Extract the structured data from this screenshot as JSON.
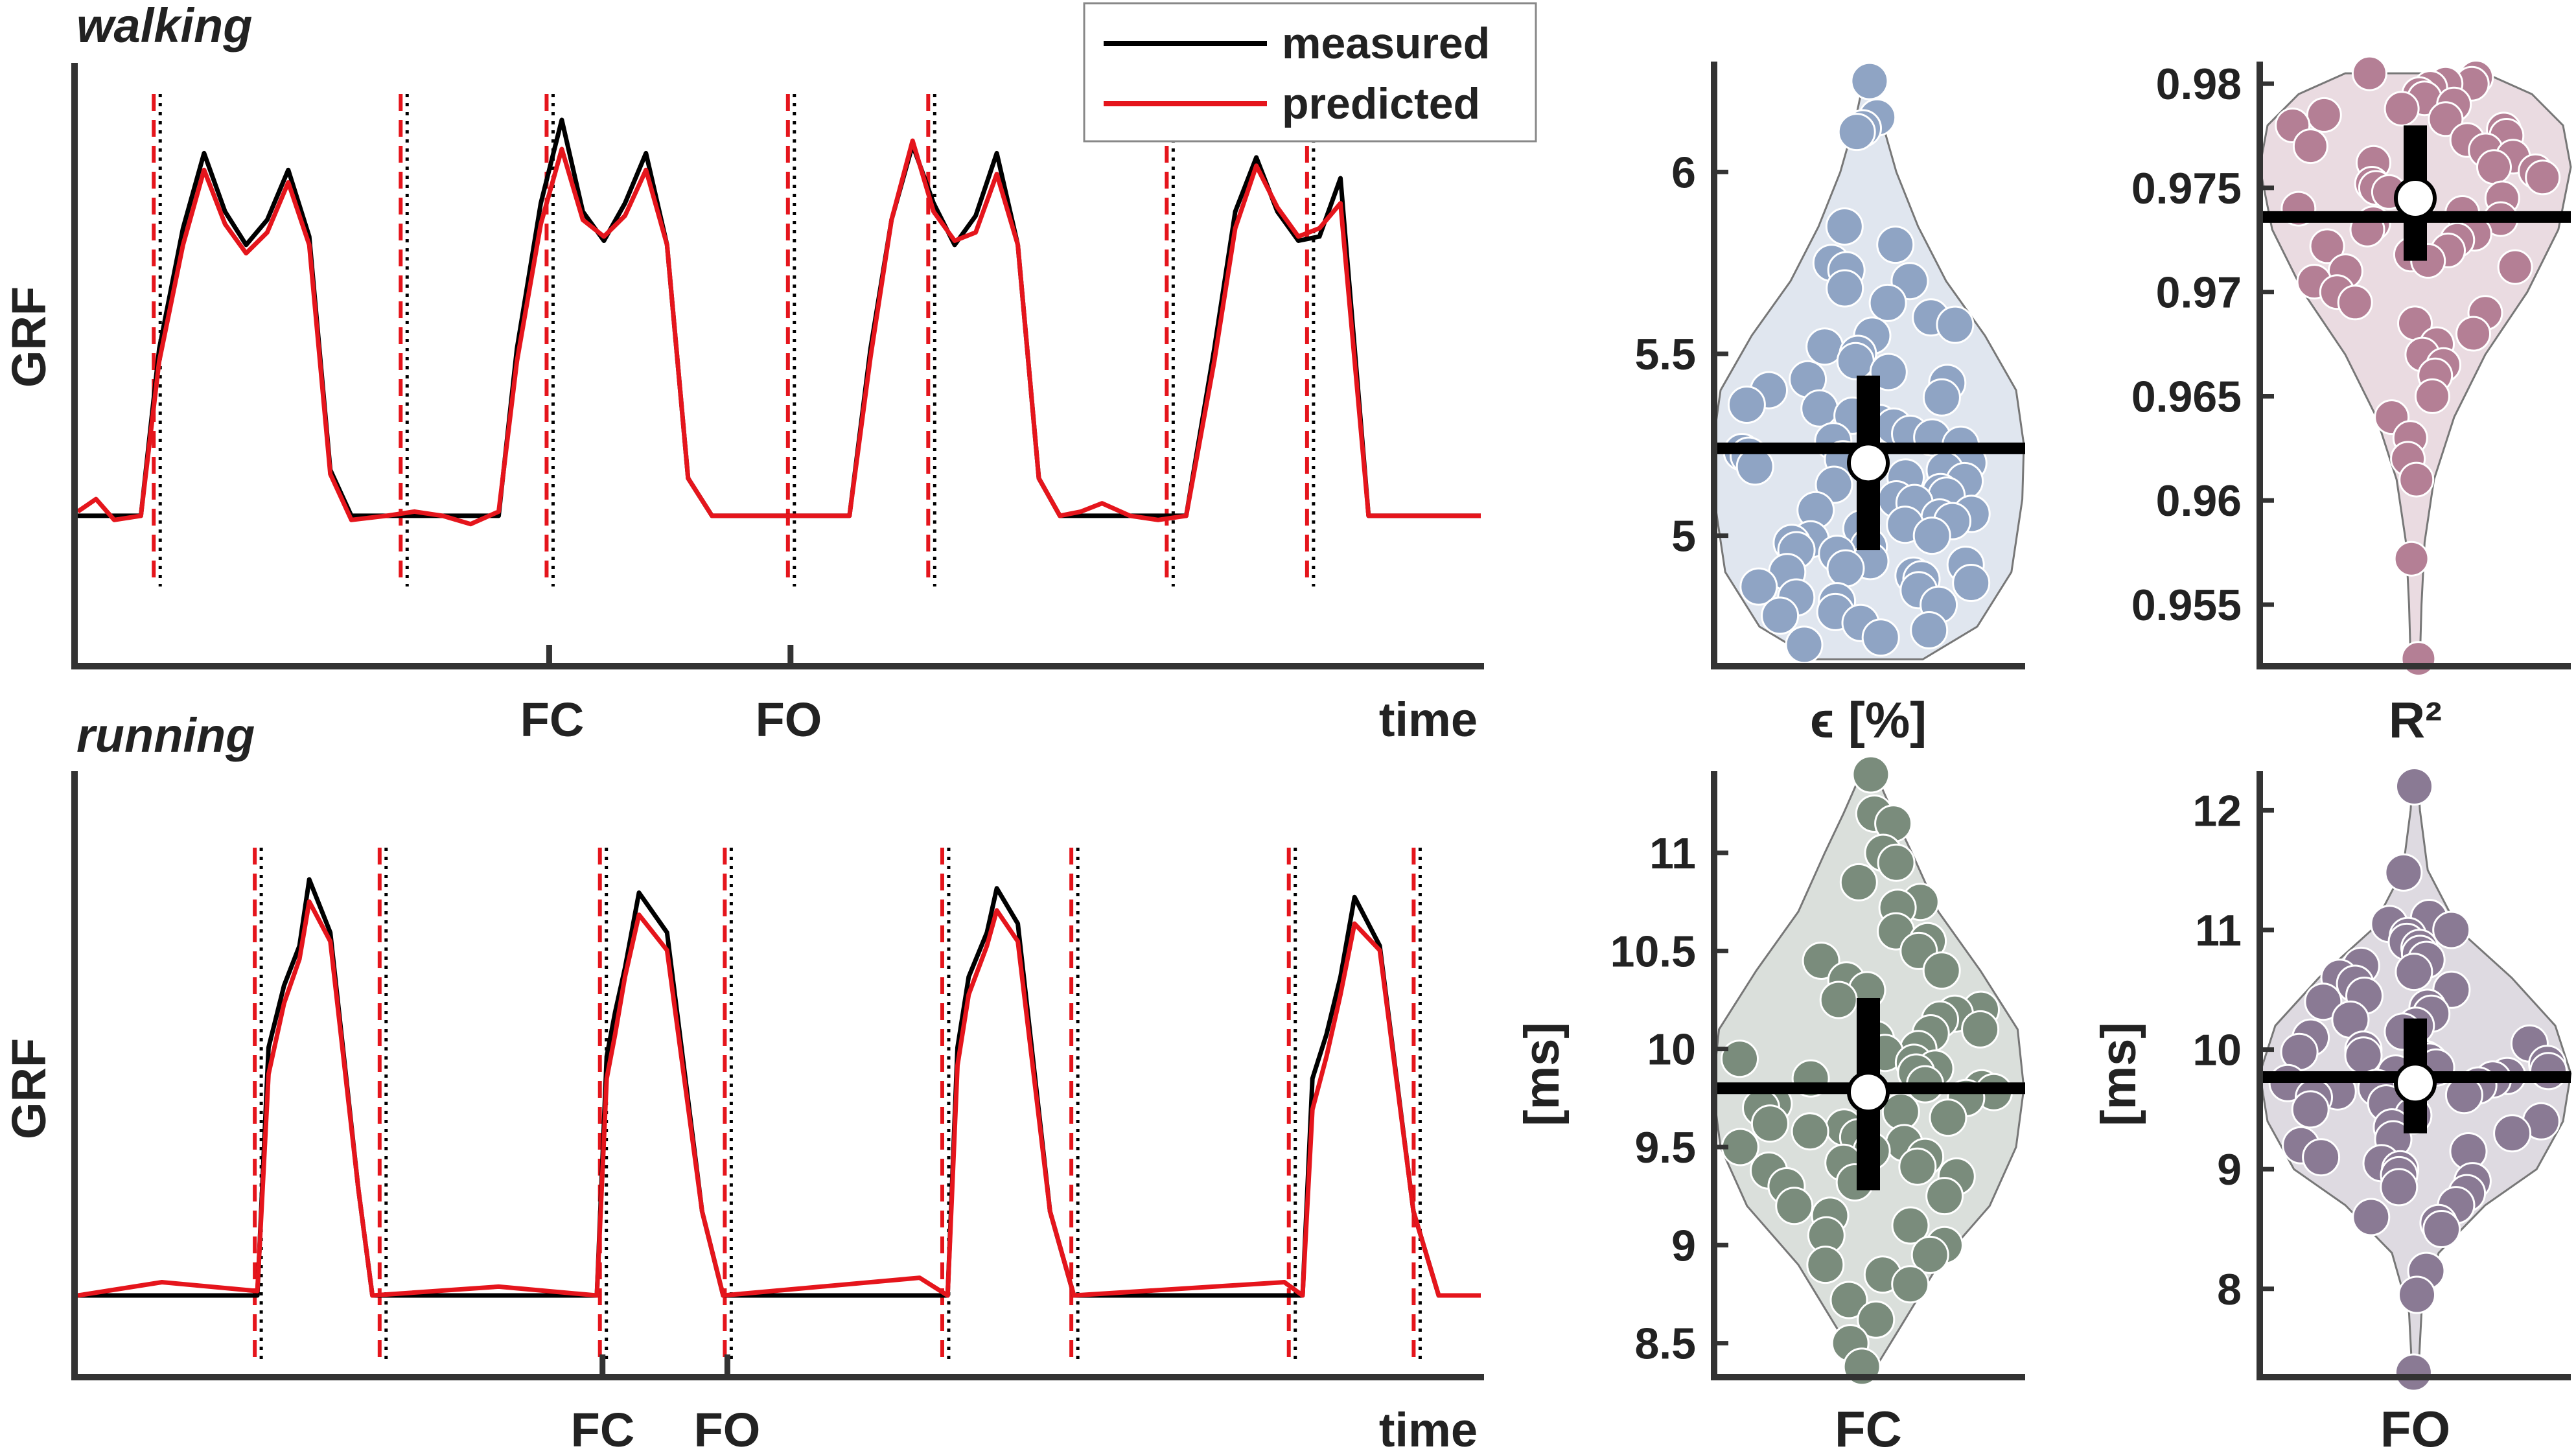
{
  "legend": {
    "measured": "measured",
    "predicted": "predicted",
    "measured_color": "#000000",
    "predicted_color": "#e5151c"
  },
  "chart_data": [
    {
      "type": "line",
      "title": "walking",
      "ylabel": "GRF",
      "xlabel": "time",
      "x_event_labels": [
        "FC",
        "FO"
      ],
      "series": [
        {
          "name": "measured"
        },
        {
          "name": "predicted"
        }
      ],
      "x": [
        0,
        0.013,
        0.026,
        0.045,
        0.058,
        0.075,
        0.09,
        0.105,
        0.12,
        0.135,
        0.15,
        0.165,
        0.18,
        0.195,
        0.22,
        0.24,
        0.26,
        0.28,
        0.3,
        0.313,
        0.33,
        0.345,
        0.36,
        0.375,
        0.39,
        0.405,
        0.42,
        0.435,
        0.452,
        0.47,
        0.49,
        0.51,
        0.53,
        0.55,
        0.565,
        0.58,
        0.595,
        0.61,
        0.625,
        0.64,
        0.655,
        0.67,
        0.685,
        0.7,
        0.715,
        0.73,
        0.75,
        0.77,
        0.79,
        0.81,
        0.825,
        0.84,
        0.855,
        0.87,
        0.885,
        0.9,
        0.92,
        0.94,
        0.96,
        0.98,
        1.0
      ],
      "measured": [
        0.05,
        0.05,
        0.05,
        0.05,
        0.45,
        0.74,
        0.92,
        0.78,
        0.7,
        0.76,
        0.88,
        0.72,
        0.16,
        0.05,
        0.05,
        0.05,
        0.05,
        0.05,
        0.05,
        0.45,
        0.8,
        1.0,
        0.78,
        0.71,
        0.8,
        0.92,
        0.7,
        0.14,
        0.05,
        0.05,
        0.05,
        0.05,
        0.05,
        0.05,
        0.45,
        0.76,
        0.94,
        0.8,
        0.7,
        0.77,
        0.92,
        0.7,
        0.14,
        0.05,
        0.05,
        0.05,
        0.05,
        0.05,
        0.05,
        0.45,
        0.78,
        0.91,
        0.78,
        0.71,
        0.72,
        0.86,
        0.05,
        0.05,
        0.05,
        0.05,
        0.05
      ],
      "predicted": [
        0.06,
        0.09,
        0.04,
        0.05,
        0.42,
        0.7,
        0.88,
        0.75,
        0.68,
        0.73,
        0.85,
        0.7,
        0.15,
        0.04,
        0.05,
        0.06,
        0.05,
        0.03,
        0.06,
        0.42,
        0.75,
        0.93,
        0.76,
        0.72,
        0.77,
        0.88,
        0.7,
        0.14,
        0.05,
        0.05,
        0.05,
        0.05,
        0.05,
        0.05,
        0.43,
        0.76,
        0.95,
        0.78,
        0.71,
        0.73,
        0.87,
        0.7,
        0.14,
        0.05,
        0.06,
        0.08,
        0.05,
        0.04,
        0.05,
        0.42,
        0.74,
        0.89,
        0.79,
        0.72,
        0.74,
        0.8,
        0.05,
        0.05,
        0.05,
        0.05,
        0.05
      ],
      "event_lines_x": [
        0.056,
        0.232,
        0.336,
        0.508,
        0.608,
        0.778,
        0.878
      ],
      "event_tick_x": {
        "FC": 0.336,
        "FO": 0.508
      }
    },
    {
      "type": "line",
      "title": "running",
      "ylabel": "GRF",
      "xlabel": "time",
      "x_event_labels": [
        "FC",
        "FO"
      ],
      "series": [
        {
          "name": "measured"
        },
        {
          "name": "predicted"
        }
      ],
      "measured": [
        [
          0,
          0.06
        ],
        [
          0.06,
          0.06
        ],
        [
          0.128,
          0.06
        ],
        [
          0.136,
          0.62
        ],
        [
          0.147,
          0.76
        ],
        [
          0.158,
          0.85
        ],
        [
          0.165,
          1.0
        ],
        [
          0.18,
          0.88
        ],
        [
          0.2,
          0.3
        ],
        [
          0.21,
          0.06
        ],
        [
          0.3,
          0.06
        ],
        [
          0.37,
          0.06
        ],
        [
          0.377,
          0.6
        ],
        [
          0.383,
          0.7
        ],
        [
          0.39,
          0.8
        ],
        [
          0.4,
          0.97
        ],
        [
          0.42,
          0.88
        ],
        [
          0.445,
          0.25
        ],
        [
          0.46,
          0.06
        ],
        [
          0.6,
          0.06
        ],
        [
          0.62,
          0.06
        ],
        [
          0.627,
          0.62
        ],
        [
          0.635,
          0.78
        ],
        [
          0.648,
          0.88
        ],
        [
          0.655,
          0.98
        ],
        [
          0.67,
          0.9
        ],
        [
          0.693,
          0.25
        ],
        [
          0.71,
          0.06
        ],
        [
          0.86,
          0.06
        ],
        [
          0.873,
          0.06
        ],
        [
          0.88,
          0.55
        ],
        [
          0.89,
          0.65
        ],
        [
          0.9,
          0.78
        ],
        [
          0.91,
          0.96
        ],
        [
          0.928,
          0.85
        ],
        [
          0.952,
          0.25
        ],
        [
          0.97,
          0.06
        ],
        [
          1.0,
          0.06
        ]
      ],
      "predicted": [
        [
          0,
          0.06
        ],
        [
          0.06,
          0.09
        ],
        [
          0.128,
          0.07
        ],
        [
          0.136,
          0.56
        ],
        [
          0.147,
          0.72
        ],
        [
          0.158,
          0.82
        ],
        [
          0.165,
          0.95
        ],
        [
          0.18,
          0.86
        ],
        [
          0.2,
          0.3
        ],
        [
          0.21,
          0.06
        ],
        [
          0.3,
          0.08
        ],
        [
          0.37,
          0.06
        ],
        [
          0.377,
          0.55
        ],
        [
          0.383,
          0.65
        ],
        [
          0.39,
          0.78
        ],
        [
          0.4,
          0.92
        ],
        [
          0.42,
          0.84
        ],
        [
          0.445,
          0.25
        ],
        [
          0.46,
          0.06
        ],
        [
          0.6,
          0.1
        ],
        [
          0.62,
          0.06
        ],
        [
          0.627,
          0.58
        ],
        [
          0.635,
          0.74
        ],
        [
          0.648,
          0.85
        ],
        [
          0.655,
          0.93
        ],
        [
          0.67,
          0.86
        ],
        [
          0.693,
          0.25
        ],
        [
          0.71,
          0.06
        ],
        [
          0.86,
          0.09
        ],
        [
          0.873,
          0.06
        ],
        [
          0.88,
          0.48
        ],
        [
          0.89,
          0.6
        ],
        [
          0.9,
          0.74
        ],
        [
          0.91,
          0.9
        ],
        [
          0.928,
          0.84
        ],
        [
          0.952,
          0.25
        ],
        [
          0.97,
          0.06
        ],
        [
          1.0,
          0.06
        ]
      ],
      "event_lines_x": [
        0.128,
        0.217,
        0.374,
        0.463,
        0.618,
        0.71,
        0.865,
        0.954
      ],
      "event_tick_x": {
        "FC": 0.374,
        "FO": 0.463
      }
    },
    {
      "type": "violin",
      "xlabel": "ϵ [%]",
      "ylabel": "",
      "ylim": [
        4.65,
        6.3
      ],
      "yticks": [
        "5",
        "5.5",
        "6"
      ],
      "color": "#8fa4c4",
      "mean": 5.24,
      "median": 5.2,
      "iqr": [
        4.96,
        5.44
      ],
      "violin_profile": [
        [
          4.66,
          0.35
        ],
        [
          4.75,
          0.7
        ],
        [
          4.9,
          0.92
        ],
        [
          5.1,
          0.99
        ],
        [
          5.25,
          1.0
        ],
        [
          5.4,
          0.95
        ],
        [
          5.55,
          0.75
        ],
        [
          5.7,
          0.5
        ],
        [
          5.85,
          0.32
        ],
        [
          6.0,
          0.18
        ],
        [
          6.15,
          0.08
        ],
        [
          6.27,
          0.02
        ]
      ],
      "points": [
        6.25,
        6.15,
        6.12,
        6.11,
        5.85,
        5.8,
        5.75,
        5.73,
        5.7,
        5.68,
        5.64,
        5.6,
        5.58,
        5.55,
        5.52,
        5.5,
        5.48,
        5.45,
        5.43,
        5.42,
        5.4,
        5.38,
        5.36,
        5.35,
        5.33,
        5.31,
        5.3,
        5.28,
        5.27,
        5.26,
        5.25,
        5.23,
        5.22,
        5.21,
        5.2,
        5.19,
        5.18,
        5.16,
        5.15,
        5.14,
        5.12,
        5.11,
        5.1,
        5.09,
        5.07,
        5.06,
        5.05,
        5.04,
        5.03,
        5.02,
        5.0,
        4.99,
        4.98,
        4.97,
        4.96,
        4.95,
        4.93,
        4.92,
        4.91,
        4.9,
        4.89,
        4.88,
        4.87,
        4.86,
        4.85,
        4.83,
        4.82,
        4.81,
        4.79,
        4.78,
        4.76,
        4.74,
        4.72,
        4.7
      ]
    },
    {
      "type": "violin",
      "xlabel": "R²",
      "ylabel": "",
      "ylim": [
        0.9522,
        0.981
      ],
      "yticks": [
        "0.955",
        "0.96",
        "0.965",
        "0.97",
        "0.975",
        "0.98"
      ],
      "color": "#b47f95",
      "mean": 0.9736,
      "median": 0.9745,
      "iqr": [
        0.9715,
        0.978
      ],
      "violin_profile": [
        [
          0.9524,
          0.03
        ],
        [
          0.955,
          0.04
        ],
        [
          0.958,
          0.06
        ],
        [
          0.961,
          0.12
        ],
        [
          0.964,
          0.25
        ],
        [
          0.967,
          0.45
        ],
        [
          0.97,
          0.72
        ],
        [
          0.973,
          0.92
        ],
        [
          0.976,
          1.0
        ],
        [
          0.978,
          0.95
        ],
        [
          0.9795,
          0.75
        ],
        [
          0.9805,
          0.45
        ]
      ],
      "points": [
        0.9805,
        0.9803,
        0.98,
        0.98,
        0.9798,
        0.9795,
        0.9793,
        0.979,
        0.9788,
        0.9785,
        0.9783,
        0.978,
        0.9778,
        0.9775,
        0.9773,
        0.977,
        0.9768,
        0.9765,
        0.9762,
        0.976,
        0.9758,
        0.9755,
        0.9752,
        0.975,
        0.9748,
        0.9745,
        0.9743,
        0.974,
        0.9738,
        0.9735,
        0.9733,
        0.973,
        0.9728,
        0.9725,
        0.9722,
        0.972,
        0.9718,
        0.9715,
        0.9712,
        0.971,
        0.9705,
        0.97,
        0.9695,
        0.969,
        0.9685,
        0.968,
        0.9675,
        0.967,
        0.9665,
        0.966,
        0.965,
        0.964,
        0.963,
        0.962,
        0.961,
        0.9572,
        0.9524
      ]
    },
    {
      "type": "violin",
      "xlabel": "FC",
      "ylabel": "[ms]",
      "ylim": [
        8.35,
        11.4
      ],
      "yticks": [
        "8.5",
        "9",
        "9.5",
        "10",
        "10.5",
        "11"
      ],
      "color": "#7a8c7c",
      "mean": 9.8,
      "median": 9.78,
      "iqr": [
        9.28,
        10.26
      ],
      "violin_profile": [
        [
          8.38,
          0.05
        ],
        [
          8.6,
          0.22
        ],
        [
          8.9,
          0.45
        ],
        [
          9.2,
          0.78
        ],
        [
          9.5,
          0.95
        ],
        [
          9.8,
          1.0
        ],
        [
          10.1,
          0.96
        ],
        [
          10.4,
          0.72
        ],
        [
          10.7,
          0.45
        ],
        [
          11.0,
          0.28
        ],
        [
          11.2,
          0.16
        ],
        [
          11.38,
          0.06
        ]
      ],
      "points": [
        11.4,
        11.2,
        11.15,
        11.0,
        10.95,
        10.85,
        10.75,
        10.72,
        10.6,
        10.55,
        10.5,
        10.45,
        10.4,
        10.35,
        10.3,
        10.25,
        10.2,
        10.18,
        10.15,
        10.1,
        10.08,
        10.05,
        10.0,
        9.98,
        9.95,
        9.93,
        9.9,
        9.88,
        9.85,
        9.82,
        9.8,
        9.78,
        9.75,
        9.72,
        9.7,
        9.68,
        9.65,
        9.62,
        9.6,
        9.58,
        9.55,
        9.52,
        9.5,
        9.48,
        9.45,
        9.42,
        9.4,
        9.38,
        9.35,
        9.32,
        9.3,
        9.25,
        9.2,
        9.15,
        9.1,
        9.05,
        9.0,
        8.95,
        8.9,
        8.85,
        8.8,
        8.72,
        8.62,
        8.5,
        8.38
      ]
    },
    {
      "type": "violin",
      "xlabel": "FO",
      "ylabel": "[ms]",
      "ylim": [
        7.3,
        12.3
      ],
      "yticks": [
        "8",
        "9",
        "10",
        "11",
        "12"
      ],
      "color": "#8a7a94",
      "mean": 9.77,
      "median": 9.72,
      "iqr": [
        9.3,
        10.26
      ],
      "violin_profile": [
        [
          7.3,
          0.02
        ],
        [
          7.8,
          0.04
        ],
        [
          8.3,
          0.15
        ],
        [
          8.7,
          0.45
        ],
        [
          9.0,
          0.78
        ],
        [
          9.4,
          0.95
        ],
        [
          9.8,
          1.0
        ],
        [
          10.2,
          0.9
        ],
        [
          10.6,
          0.62
        ],
        [
          11.0,
          0.28
        ],
        [
          11.5,
          0.08
        ],
        [
          12.0,
          0.03
        ],
        [
          12.2,
          0.02
        ]
      ],
      "points": [
        12.2,
        11.48,
        11.1,
        11.05,
        11.0,
        10.95,
        10.9,
        10.85,
        10.8,
        10.75,
        10.7,
        10.65,
        10.6,
        10.55,
        10.5,
        10.45,
        10.4,
        10.35,
        10.3,
        10.25,
        10.2,
        10.15,
        10.1,
        10.05,
        10.0,
        9.98,
        9.95,
        9.92,
        9.9,
        9.88,
        9.85,
        9.82,
        9.8,
        9.78,
        9.75,
        9.72,
        9.7,
        9.68,
        9.65,
        9.62,
        9.6,
        9.55,
        9.5,
        9.45,
        9.4,
        9.35,
        9.3,
        9.25,
        9.2,
        9.15,
        9.1,
        9.05,
        9.0,
        8.95,
        8.9,
        8.85,
        8.8,
        8.7,
        8.6,
        8.55,
        8.5,
        8.15,
        7.95,
        7.3
      ]
    }
  ]
}
